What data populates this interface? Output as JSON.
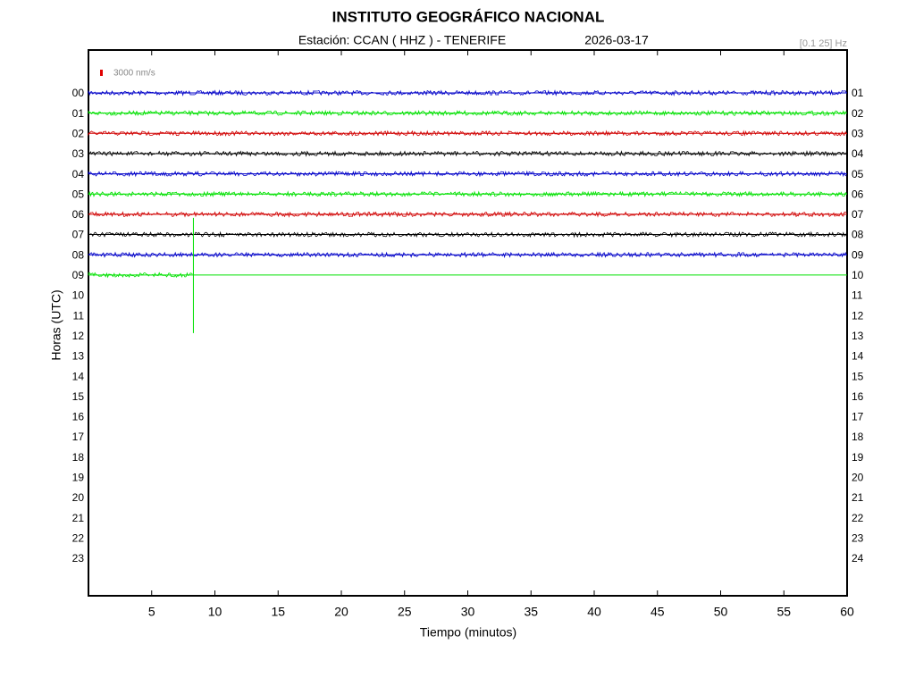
{
  "chart_data": {
    "type": "helicorder",
    "title": "INSTITUTO GEOGRÁFICO NACIONAL",
    "station": "Estación:  CCAN ( HHZ ) - TENERIFE",
    "date": "2026-03-17",
    "band": "[0.1 25] Hz",
    "scale_label": "3000 nm/s",
    "scale_color": "#e00000",
    "xlabel": "Tiempo (minutos)",
    "ylabel": "Horas (UTC)",
    "xlim": [
      0,
      60
    ],
    "xticks": [
      5,
      10,
      15,
      20,
      25,
      30,
      35,
      40,
      45,
      50,
      55,
      60
    ],
    "categories": [
      "00",
      "01",
      "02",
      "03",
      "04",
      "05",
      "06",
      "07",
      "08",
      "09",
      "10",
      "11",
      "12",
      "13",
      "14",
      "15",
      "16",
      "17",
      "18",
      "19",
      "20",
      "21",
      "22",
      "23"
    ],
    "right_labels": [
      "01",
      "02",
      "03",
      "04",
      "05",
      "06",
      "07",
      "08",
      "09",
      "10",
      "11",
      "12",
      "13",
      "14",
      "15",
      "16",
      "17",
      "18",
      "19",
      "20",
      "21",
      "22",
      "23",
      "24"
    ],
    "series": [
      {
        "color": "#0000c8",
        "x": [
          0,
          60
        ]
      },
      {
        "color": "#00e000",
        "x": [
          0,
          60
        ]
      },
      {
        "color": "#d00000",
        "x": [
          0,
          60
        ]
      },
      {
        "color": "#000000",
        "x": [
          0,
          60
        ]
      },
      {
        "color": "#0000c8",
        "x": [
          0,
          60
        ]
      },
      {
        "color": "#00e000",
        "x": [
          0,
          60
        ]
      },
      {
        "color": "#d00000",
        "x": [
          0,
          60
        ]
      },
      {
        "color": "#000000",
        "x": [
          0,
          60
        ]
      },
      {
        "color": "#0000c8",
        "x": [
          0,
          60
        ]
      },
      {
        "color": "#00e000",
        "x": [
          0,
          8.3,
          60
        ]
      }
    ]
  }
}
